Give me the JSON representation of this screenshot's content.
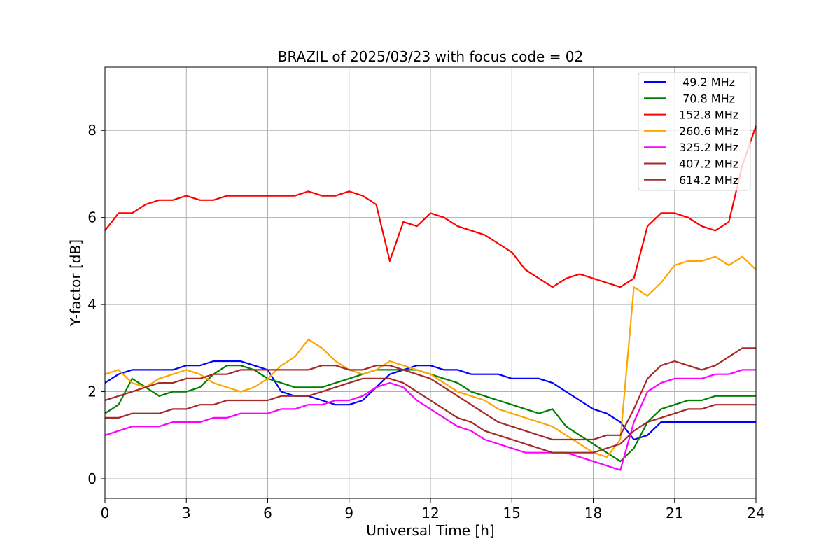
{
  "chart_data": {
    "type": "line",
    "title": "BRAZIL of 2025/03/23 with focus code = 02",
    "xlabel": "Universal Time [h]",
    "ylabel": "Y-factor [dB]",
    "xlim": [
      0,
      24
    ],
    "ylim": [
      -0.45,
      9.45
    ],
    "xticks": [
      0,
      3,
      6,
      9,
      12,
      15,
      18,
      21,
      24
    ],
    "yticks": [
      0,
      2,
      4,
      6,
      8
    ],
    "grid": true,
    "legend_position": "top-right",
    "series": [
      {
        "name": "49.2 MHz",
        "label": " 49.2 MHz",
        "color": "#0000ff",
        "x": [
          0,
          0.5,
          1,
          1.5,
          2,
          2.5,
          3,
          3.5,
          4,
          4.5,
          5,
          5.5,
          6,
          6.5,
          7,
          7.5,
          8,
          8.5,
          9,
          9.5,
          10,
          10.5,
          11,
          11.5,
          12,
          12.5,
          13,
          13.5,
          14,
          14.5,
          15,
          15.5,
          16,
          16.5,
          17,
          17.5,
          18,
          18.5,
          19,
          19.5,
          20,
          20.5,
          21,
          21.5,
          22,
          22.5,
          23,
          23.5,
          24
        ],
        "y": [
          2.2,
          2.4,
          2.5,
          2.5,
          2.5,
          2.5,
          2.6,
          2.6,
          2.7,
          2.7,
          2.7,
          2.6,
          2.5,
          2.0,
          1.9,
          1.9,
          1.8,
          1.7,
          1.7,
          1.8,
          2.1,
          2.4,
          2.5,
          2.6,
          2.6,
          2.5,
          2.5,
          2.4,
          2.4,
          2.4,
          2.3,
          2.3,
          2.3,
          2.2,
          2.0,
          1.8,
          1.6,
          1.5,
          1.3,
          0.9,
          1.0,
          1.3,
          1.3,
          1.3,
          1.3,
          1.3,
          1.3,
          1.3,
          1.3
        ]
      },
      {
        "name": "70.8 MHz",
        "label": " 70.8 MHz",
        "color": "#008000",
        "x": [
          0,
          0.5,
          1,
          1.5,
          2,
          2.5,
          3,
          3.5,
          4,
          4.5,
          5,
          5.5,
          6,
          6.5,
          7,
          7.5,
          8,
          8.5,
          9,
          9.5,
          10,
          10.5,
          11,
          11.5,
          12,
          12.5,
          13,
          13.5,
          14,
          14.5,
          15,
          15.5,
          16,
          16.5,
          17,
          17.5,
          18,
          18.5,
          19,
          19.5,
          20,
          20.5,
          21,
          21.5,
          22,
          22.5,
          23,
          23.5,
          24
        ],
        "y": [
          1.5,
          1.7,
          2.3,
          2.1,
          1.9,
          2.0,
          2.0,
          2.1,
          2.4,
          2.6,
          2.6,
          2.5,
          2.3,
          2.2,
          2.1,
          2.1,
          2.1,
          2.2,
          2.3,
          2.4,
          2.5,
          2.5,
          2.5,
          2.5,
          2.4,
          2.3,
          2.2,
          2.0,
          1.9,
          1.8,
          1.7,
          1.6,
          1.5,
          1.6,
          1.2,
          1.0,
          0.8,
          0.6,
          0.4,
          0.7,
          1.3,
          1.6,
          1.7,
          1.8,
          1.8,
          1.9,
          1.9,
          1.9,
          1.9
        ]
      },
      {
        "name": "152.8 MHz",
        "label": "152.8 MHz",
        "color": "#ff0000",
        "x": [
          0,
          0.5,
          1,
          1.5,
          2,
          2.5,
          3,
          3.5,
          4,
          4.5,
          5,
          5.5,
          6,
          6.5,
          7,
          7.5,
          8,
          8.5,
          9,
          9.5,
          10,
          10.5,
          11,
          11.5,
          12,
          12.5,
          13,
          13.5,
          14,
          14.5,
          15,
          15.5,
          16,
          16.5,
          17,
          17.5,
          18,
          18.5,
          19,
          19.5,
          20,
          20.5,
          21,
          21.5,
          22,
          22.5,
          23,
          23.5,
          24
        ],
        "y": [
          5.7,
          6.1,
          6.1,
          6.3,
          6.4,
          6.4,
          6.5,
          6.4,
          6.4,
          6.5,
          6.5,
          6.5,
          6.5,
          6.5,
          6.5,
          6.6,
          6.5,
          6.5,
          6.6,
          6.5,
          6.3,
          5.0,
          5.9,
          5.8,
          6.1,
          6.0,
          5.8,
          5.7,
          5.6,
          5.4,
          5.2,
          4.8,
          4.6,
          4.4,
          4.6,
          4.7,
          4.6,
          4.5,
          4.4,
          4.6,
          5.8,
          6.1,
          6.1,
          6.0,
          5.8,
          5.7,
          5.9,
          7.2,
          8.1
        ]
      },
      {
        "name": "260.6 MHz",
        "label": "260.6 MHz",
        "color": "#ffa500",
        "x": [
          0,
          0.5,
          1,
          1.5,
          2,
          2.5,
          3,
          3.5,
          4,
          4.5,
          5,
          5.5,
          6,
          6.5,
          7,
          7.5,
          8,
          8.5,
          9,
          9.5,
          10,
          10.5,
          11,
          11.5,
          12,
          12.5,
          13,
          13.5,
          14,
          14.5,
          15,
          15.5,
          16,
          16.5,
          17,
          17.5,
          18,
          18.5,
          19,
          19.5,
          20,
          20.5,
          21,
          21.5,
          22,
          22.5,
          23,
          23.5,
          24
        ],
        "y": [
          2.4,
          2.5,
          2.2,
          2.1,
          2.3,
          2.4,
          2.5,
          2.4,
          2.2,
          2.1,
          2.0,
          2.1,
          2.3,
          2.6,
          2.8,
          3.2,
          3.0,
          2.7,
          2.5,
          2.4,
          2.5,
          2.7,
          2.6,
          2.5,
          2.4,
          2.2,
          2.0,
          1.9,
          1.8,
          1.6,
          1.5,
          1.4,
          1.3,
          1.2,
          1.0,
          0.8,
          0.6,
          0.5,
          0.9,
          4.4,
          4.2,
          4.5,
          4.9,
          5.0,
          5.0,
          5.1,
          4.9,
          5.1,
          4.8
        ]
      },
      {
        "name": "325.2 MHz",
        "label": "325.2 MHz",
        "color": "#ff00ff",
        "x": [
          0,
          0.5,
          1,
          1.5,
          2,
          2.5,
          3,
          3.5,
          4,
          4.5,
          5,
          5.5,
          6,
          6.5,
          7,
          7.5,
          8,
          8.5,
          9,
          9.5,
          10,
          10.5,
          11,
          11.5,
          12,
          12.5,
          13,
          13.5,
          14,
          14.5,
          15,
          15.5,
          16,
          16.5,
          17,
          17.5,
          18,
          18.5,
          19,
          19.5,
          20,
          20.5,
          21,
          21.5,
          22,
          22.5,
          23,
          23.5,
          24
        ],
        "y": [
          1.0,
          1.1,
          1.2,
          1.2,
          1.2,
          1.3,
          1.3,
          1.3,
          1.4,
          1.4,
          1.5,
          1.5,
          1.5,
          1.6,
          1.6,
          1.7,
          1.7,
          1.8,
          1.8,
          1.9,
          2.1,
          2.2,
          2.1,
          1.8,
          1.6,
          1.4,
          1.2,
          1.1,
          0.9,
          0.8,
          0.7,
          0.6,
          0.6,
          0.6,
          0.6,
          0.5,
          0.4,
          0.3,
          0.2,
          1.3,
          2.0,
          2.2,
          2.3,
          2.3,
          2.3,
          2.4,
          2.4,
          2.5,
          2.5
        ]
      },
      {
        "name": "407.2 MHz",
        "label": "407.2 MHz",
        "color": "#a52a2a",
        "x": [
          0,
          0.5,
          1,
          1.5,
          2,
          2.5,
          3,
          3.5,
          4,
          4.5,
          5,
          5.5,
          6,
          6.5,
          7,
          7.5,
          8,
          8.5,
          9,
          9.5,
          10,
          10.5,
          11,
          11.5,
          12,
          12.5,
          13,
          13.5,
          14,
          14.5,
          15,
          15.5,
          16,
          16.5,
          17,
          17.5,
          18,
          18.5,
          19,
          19.5,
          20,
          20.5,
          21,
          21.5,
          22,
          22.5,
          23,
          23.5,
          24
        ],
        "y": [
          1.8,
          1.9,
          2.0,
          2.1,
          2.2,
          2.2,
          2.3,
          2.3,
          2.4,
          2.4,
          2.5,
          2.5,
          2.5,
          2.5,
          2.5,
          2.5,
          2.6,
          2.6,
          2.5,
          2.5,
          2.6,
          2.6,
          2.5,
          2.4,
          2.3,
          2.1,
          1.9,
          1.7,
          1.5,
          1.3,
          1.2,
          1.1,
          1.0,
          0.9,
          0.9,
          0.9,
          0.9,
          1.0,
          1.0,
          1.6,
          2.3,
          2.6,
          2.7,
          2.6,
          2.5,
          2.6,
          2.8,
          3.0,
          3.0
        ]
      },
      {
        "name": "614.2 MHz",
        "label": "614.2 MHz",
        "color": "#a52a2a",
        "x": [
          0,
          0.5,
          1,
          1.5,
          2,
          2.5,
          3,
          3.5,
          4,
          4.5,
          5,
          5.5,
          6,
          6.5,
          7,
          7.5,
          8,
          8.5,
          9,
          9.5,
          10,
          10.5,
          11,
          11.5,
          12,
          12.5,
          13,
          13.5,
          14,
          14.5,
          15,
          15.5,
          16,
          16.5,
          17,
          17.5,
          18,
          18.5,
          19,
          19.5,
          20,
          20.5,
          21,
          21.5,
          22,
          22.5,
          23,
          23.5,
          24
        ],
        "y": [
          1.4,
          1.4,
          1.5,
          1.5,
          1.5,
          1.6,
          1.6,
          1.7,
          1.7,
          1.8,
          1.8,
          1.8,
          1.8,
          1.9,
          1.9,
          1.9,
          2.0,
          2.1,
          2.2,
          2.3,
          2.3,
          2.3,
          2.2,
          2.0,
          1.8,
          1.6,
          1.4,
          1.3,
          1.1,
          1.0,
          0.9,
          0.8,
          0.7,
          0.6,
          0.6,
          0.6,
          0.6,
          0.7,
          0.8,
          1.1,
          1.3,
          1.4,
          1.5,
          1.6,
          1.6,
          1.7,
          1.7,
          1.7,
          1.7
        ]
      }
    ]
  }
}
